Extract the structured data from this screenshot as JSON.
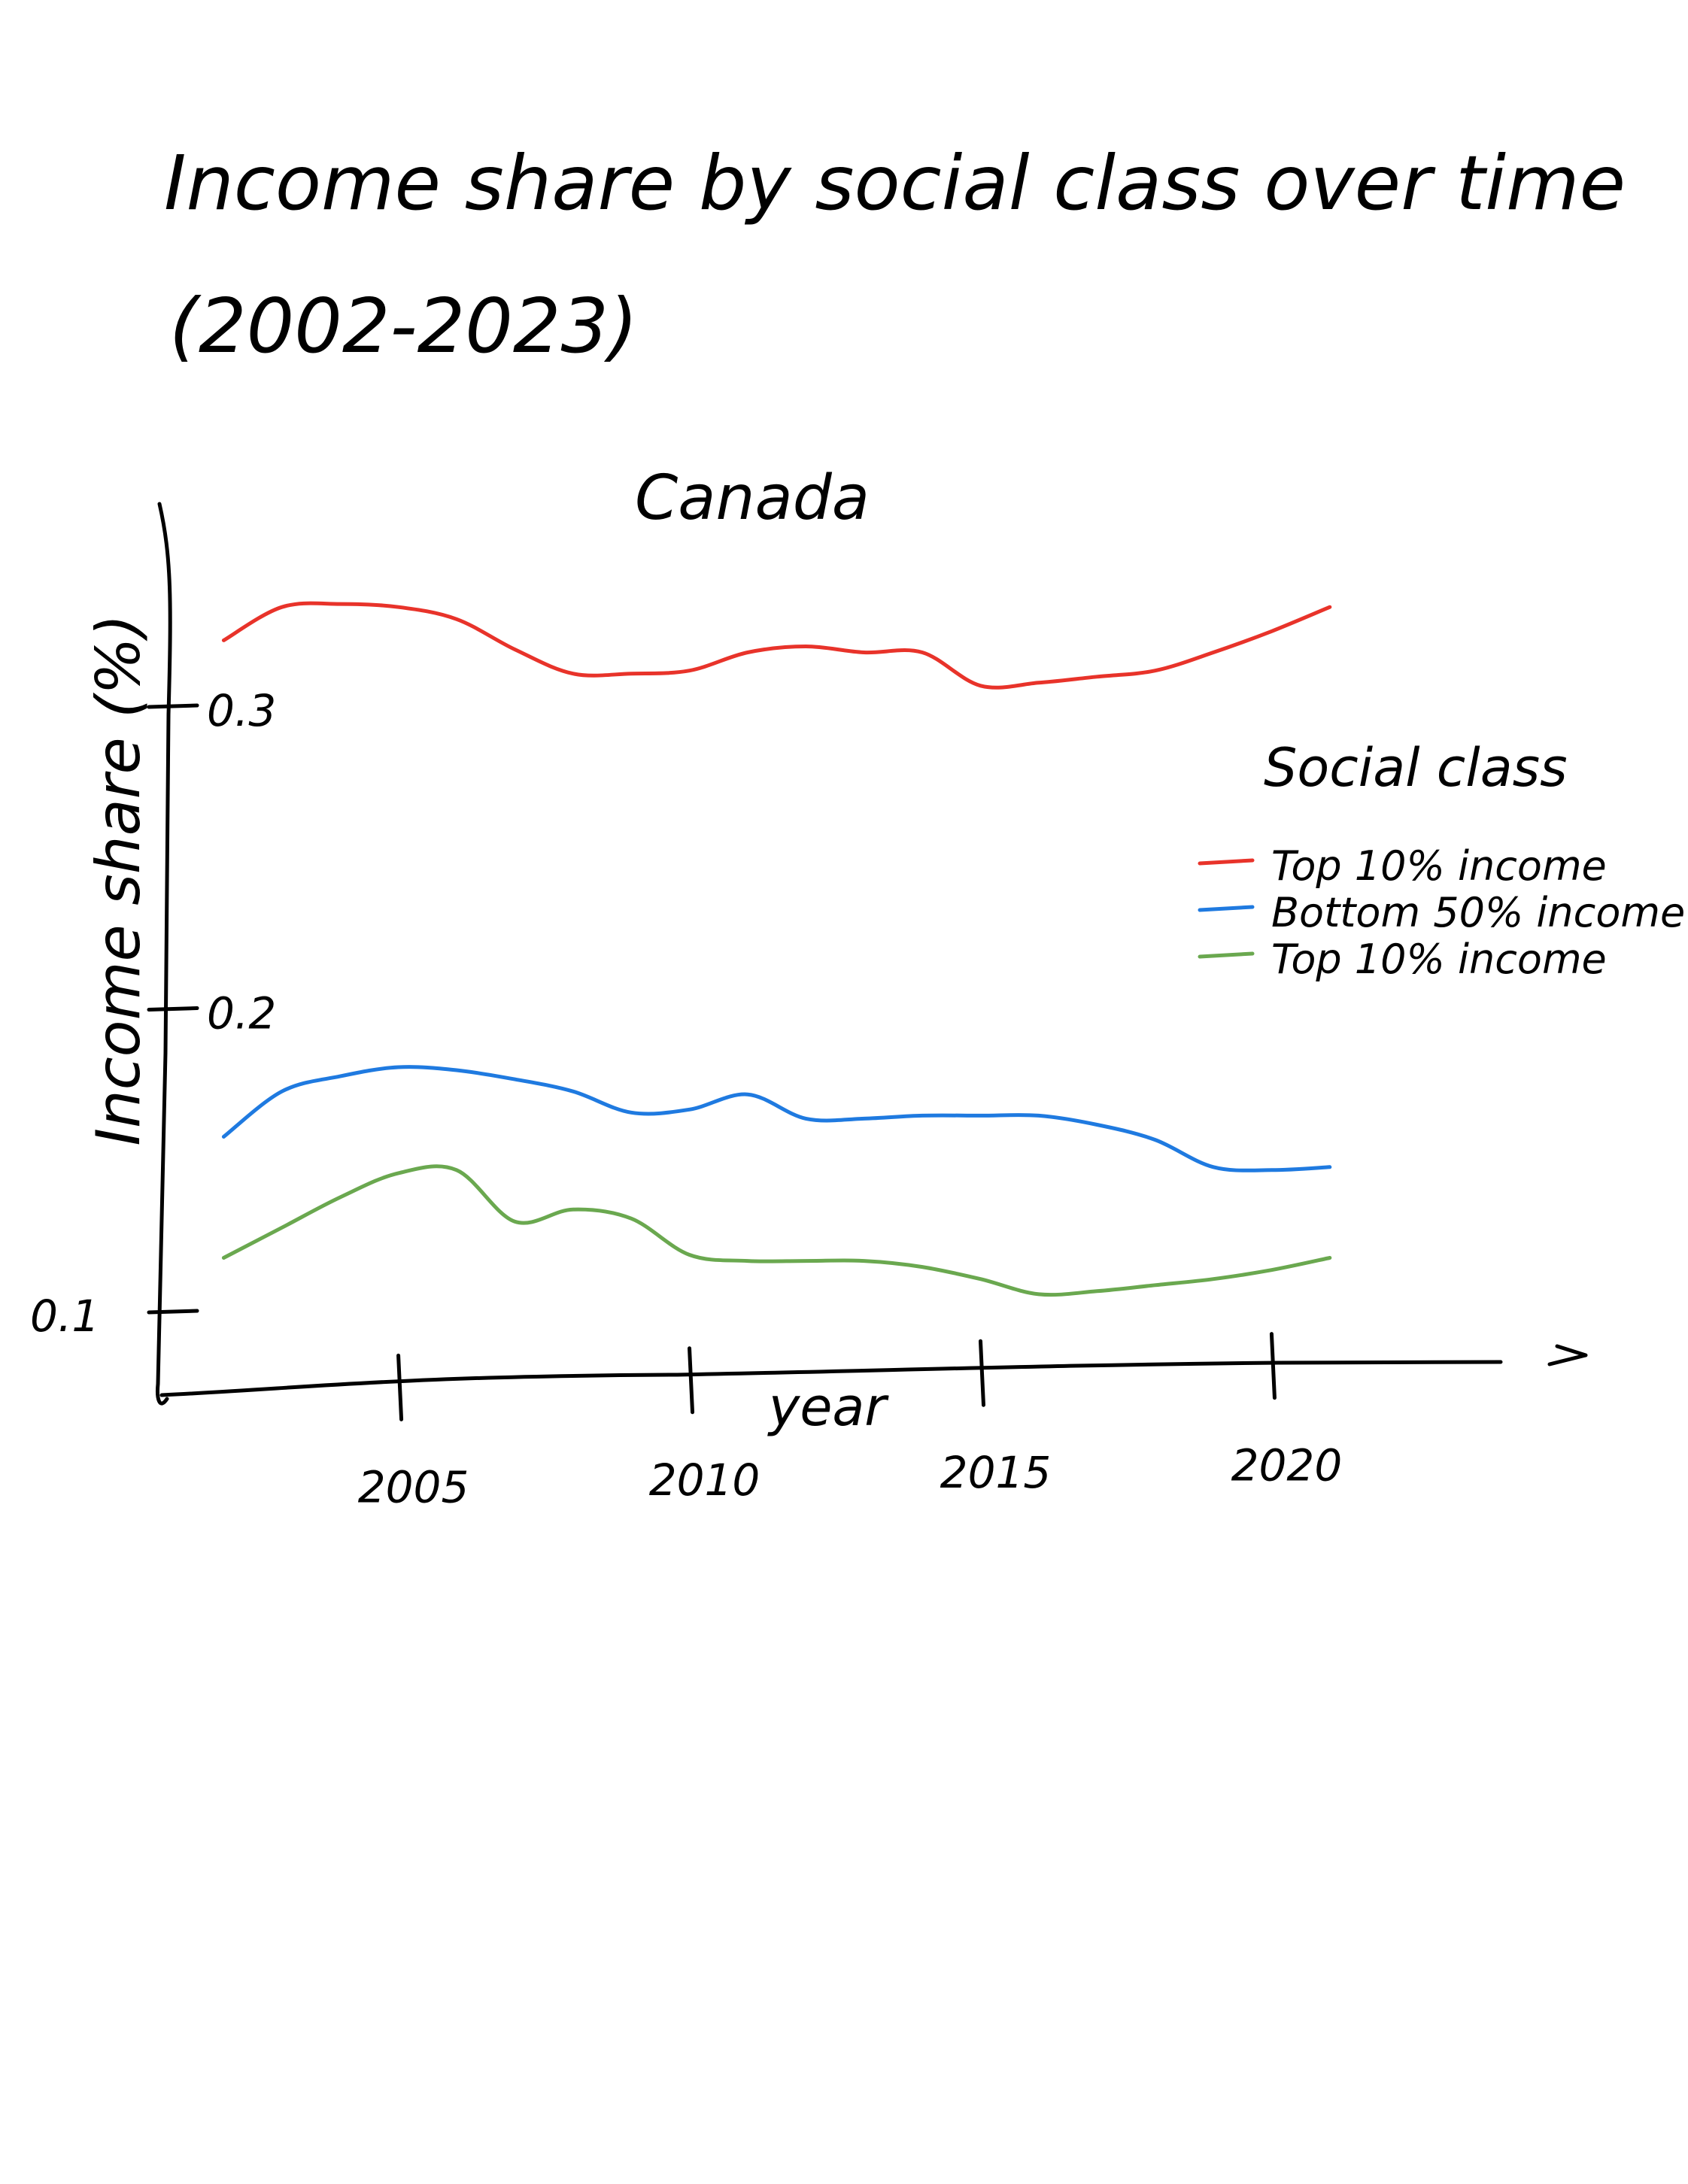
{
  "title_line1": "Income share by social class over time",
  "title_line2": "(2002-2023)",
  "chart_data": {
    "type": "line",
    "title": "Canada",
    "xlabel": "year",
    "ylabel": "Income share (%)",
    "x": [
      2002,
      2003,
      2004,
      2005,
      2006,
      2007,
      2008,
      2009,
      2010,
      2011,
      2012,
      2013,
      2014,
      2015,
      2016,
      2017,
      2018,
      2019,
      2020,
      2021
    ],
    "x_ticks": [
      2005,
      2010,
      2015,
      2020
    ],
    "y_ticks": [
      0.1,
      0.2,
      0.3
    ],
    "ylim": [
      0.08,
      0.34
    ],
    "xlim": [
      2001,
      2024
    ],
    "legend": {
      "title": "Social class",
      "position": "right"
    },
    "series": [
      {
        "name": "Top 10% income",
        "color": "#e8332a",
        "values": [
          0.322,
          0.333,
          0.334,
          0.333,
          0.329,
          0.319,
          0.311,
          0.311,
          0.312,
          0.318,
          0.32,
          0.318,
          0.318,
          0.307,
          0.308,
          0.31,
          0.312,
          0.318,
          0.325,
          0.333
        ]
      },
      {
        "name": "Bottom 50% income",
        "color": "#1f7ae0",
        "values": [
          0.158,
          0.173,
          0.178,
          0.181,
          0.18,
          0.177,
          0.173,
          0.166,
          0.167,
          0.172,
          0.164,
          0.164,
          0.165,
          0.165,
          0.165,
          0.162,
          0.157,
          0.148,
          0.147,
          0.148
        ]
      },
      {
        "name": "Top 10% income",
        "color": "#6aa84f",
        "values": [
          0.118,
          0.128,
          0.138,
          0.146,
          0.147,
          0.13,
          0.134,
          0.131,
          0.119,
          0.117,
          0.117,
          0.117,
          0.115,
          0.111,
          0.106,
          0.107,
          0.109,
          0.111,
          0.114,
          0.118
        ]
      }
    ]
  }
}
